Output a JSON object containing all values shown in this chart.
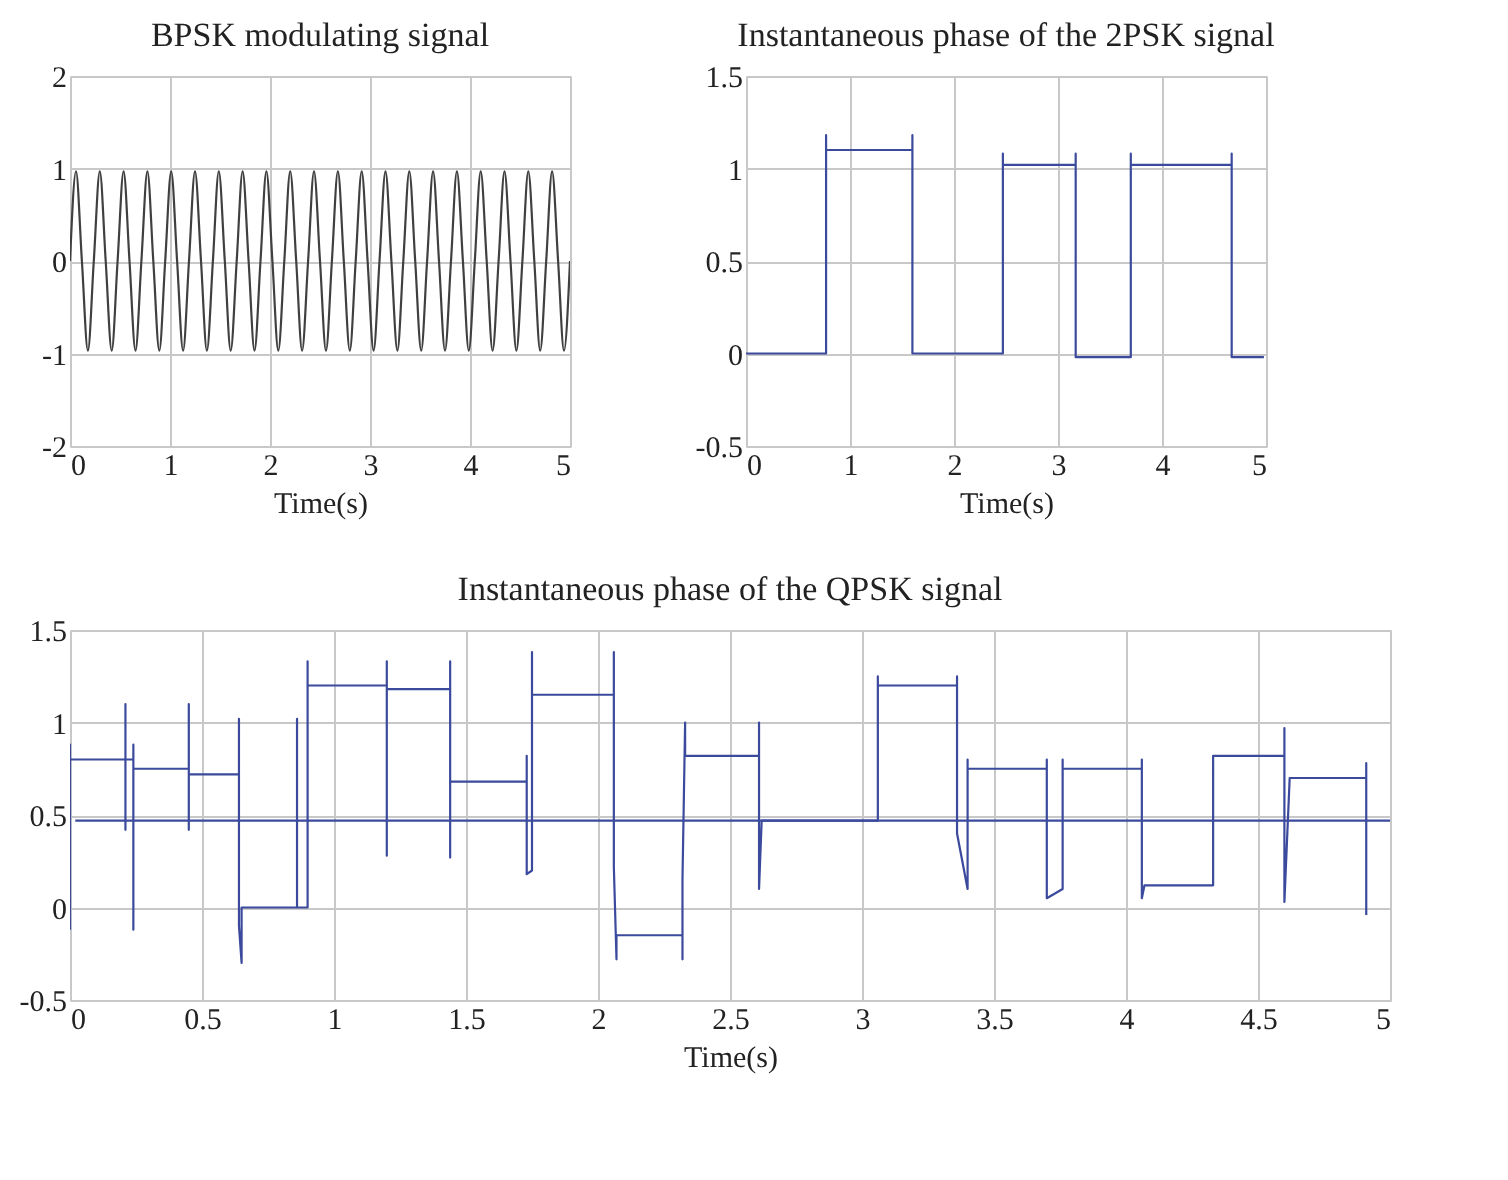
{
  "chart_data": [
    {
      "type": "line",
      "title": "BPSK modulating signal",
      "xlabel": "Time(s)",
      "xlim": [
        0,
        5
      ],
      "ylim": [
        -2,
        2
      ],
      "xticks": [
        0,
        1,
        2,
        3,
        4,
        5
      ],
      "yticks": [
        -2,
        -1,
        0,
        1,
        2
      ],
      "grid": true,
      "series": [
        {
          "color": "#404040",
          "x": [
            0,
            0.06,
            0.119,
            0.179,
            0.238,
            0.298,
            0.357,
            0.417,
            0.476,
            0.536,
            0.595,
            0.655,
            0.714,
            0.774,
            0.833,
            0.893,
            0.952,
            1.012,
            1.071,
            1.131,
            1.19,
            1.25,
            1.31,
            1.369,
            1.429,
            1.488,
            1.548,
            1.607,
            1.667,
            1.726,
            1.786,
            1.845,
            1.905,
            1.964,
            2.024,
            2.083,
            2.143,
            2.202,
            2.262,
            2.321,
            2.381,
            2.44,
            2.5,
            2.56,
            2.619,
            2.679,
            2.738,
            2.798,
            2.857,
            2.917,
            2.976,
            3.036,
            3.095,
            3.155,
            3.214,
            3.274,
            3.333,
            3.393,
            3.452,
            3.512,
            3.571,
            3.631,
            3.69,
            3.75,
            3.81,
            3.869,
            3.929,
            3.988,
            4.048,
            4.107,
            4.167,
            4.226,
            4.286,
            4.345,
            4.405,
            4.464,
            4.524,
            4.583,
            4.643,
            4.702,
            4.762,
            4.821,
            4.881,
            4.94,
            5.0
          ],
          "values": [
            0,
            0.97,
            0,
            -0.97,
            0,
            0.97,
            0,
            -0.97,
            0,
            0.97,
            0,
            -0.97,
            0,
            0.97,
            0,
            -0.97,
            0,
            0.97,
            0,
            -0.97,
            0,
            0.97,
            0,
            -0.97,
            0,
            0.97,
            0,
            -0.97,
            0,
            0.97,
            0,
            -0.97,
            0,
            0.97,
            0,
            -0.97,
            0,
            0.97,
            0,
            -0.97,
            0,
            0.97,
            0,
            -0.97,
            0,
            0.97,
            0,
            -0.97,
            0,
            0.97,
            0,
            -0.97,
            0,
            0.97,
            0,
            -0.97,
            0,
            0.97,
            0,
            -0.97,
            0,
            0.97,
            0,
            -0.97,
            0,
            0.97,
            0,
            -0.97,
            0,
            0.97,
            0,
            -0.97,
            0,
            0.97,
            0,
            -0.97,
            0,
            0.97,
            0,
            -0.97,
            0,
            0.97,
            0,
            -0.97,
            0
          ]
        }
      ]
    },
    {
      "type": "line",
      "title": "Instantaneous phase of the 2PSK signal",
      "xlabel": "Time(s)",
      "xlim": [
        0,
        5
      ],
      "ylim": [
        -0.5,
        1.5
      ],
      "xticks": [
        0,
        1,
        2,
        3,
        4,
        5
      ],
      "yticks": [
        -0.5,
        0,
        0.5,
        1,
        1.5
      ],
      "grid": true,
      "series": [
        {
          "color": "#3b4a9c",
          "x": [
            0,
            0.77,
            0.77,
            0.77,
            1.6,
            1.6,
            1.6,
            2.47,
            2.47,
            2.47,
            3.17,
            3.17,
            3.17,
            3.7,
            3.7,
            3.7,
            4.67,
            4.67,
            4.67,
            4.98
          ],
          "values": [
            0,
            0,
            1.18,
            1.1,
            1.1,
            1.18,
            0,
            0,
            1.08,
            1.02,
            1.02,
            1.08,
            -0.02,
            -0.02,
            1.08,
            1.02,
            1.02,
            1.08,
            -0.02,
            -0.02
          ]
        }
      ]
    },
    {
      "type": "line",
      "title": "Instantaneous phase of the QPSK signal",
      "xlabel": "Time(s)",
      "xlim": [
        0,
        5
      ],
      "ylim": [
        -0.5,
        1.5
      ],
      "xticks": [
        0,
        0.5,
        1,
        1.5,
        2,
        2.5,
        3,
        3.5,
        4,
        4.5,
        5
      ],
      "yticks": [
        -0.5,
        0,
        0.5,
        1,
        1.5
      ],
      "grid": true,
      "series": [
        {
          "color": "#3b4a9c",
          "x": [
            0,
            0,
            0,
            0.21,
            0.21,
            0.21,
            0.21,
            0.24,
            0.24,
            0.24,
            0.24,
            0.45,
            0.45,
            0.45,
            0.45,
            0.64,
            0.64,
            0.64,
            0.65,
            0.65,
            0.86,
            0.86,
            0.86,
            0.9,
            0.9,
            0.9,
            0.9,
            1.2,
            1.2,
            1.2,
            1.2,
            1.44,
            1.44,
            1.44,
            1.44,
            1.73,
            1.73,
            1.73,
            1.75,
            1.75,
            1.75,
            2.06,
            2.06,
            2.06,
            2.07,
            2.07,
            2.32,
            2.32,
            2.32,
            2.33,
            2.33,
            2.61,
            2.61,
            2.61,
            2.62,
            3.06,
            3.06,
            3.06,
            3.36,
            3.36,
            3.36,
            3.4,
            3.4,
            3.4,
            3.7,
            3.7,
            3.7,
            3.76,
            3.76,
            3.76,
            4.06,
            4.06,
            4.06,
            4.07,
            4.33,
            4.33,
            4.6,
            4.6,
            4.6,
            4.62,
            4.91,
            4.91,
            4.91
          ],
          "values": [
            -0.12,
            0.88,
            0.8,
            0.8,
            1.1,
            0.42,
            0.8,
            0.8,
            0.88,
            -0.12,
            0.75,
            0.75,
            1.1,
            0.42,
            0.72,
            0.72,
            1.02,
            -0.1,
            -0.3,
            0,
            0,
            1.02,
            0,
            0,
            0.27,
            1.33,
            1.2,
            1.2,
            1.33,
            0.28,
            1.18,
            1.18,
            1.33,
            0.27,
            0.68,
            0.68,
            0.82,
            0.18,
            0.2,
            1.38,
            1.15,
            1.15,
            1.38,
            0.22,
            -0.28,
            -0.15,
            -0.15,
            -0.28,
            0.15,
            1.0,
            0.82,
            0.82,
            1.0,
            0.1,
            0.47,
            0.47,
            1.25,
            1.2,
            1.2,
            1.25,
            0.4,
            0.1,
            0.8,
            0.75,
            0.75,
            0.8,
            0.05,
            0.1,
            0.8,
            0.75,
            0.75,
            0.8,
            0.05,
            0.12,
            0.12,
            0.82,
            0.82,
            0.97,
            0.03,
            0.7,
            0.7,
            0.78,
            -0.04
          ]
        },
        {
          "color": "#3b4a9c",
          "x": [
            0.02,
            5.0
          ],
          "values": [
            0.47,
            0.47
          ]
        }
      ]
    }
  ]
}
